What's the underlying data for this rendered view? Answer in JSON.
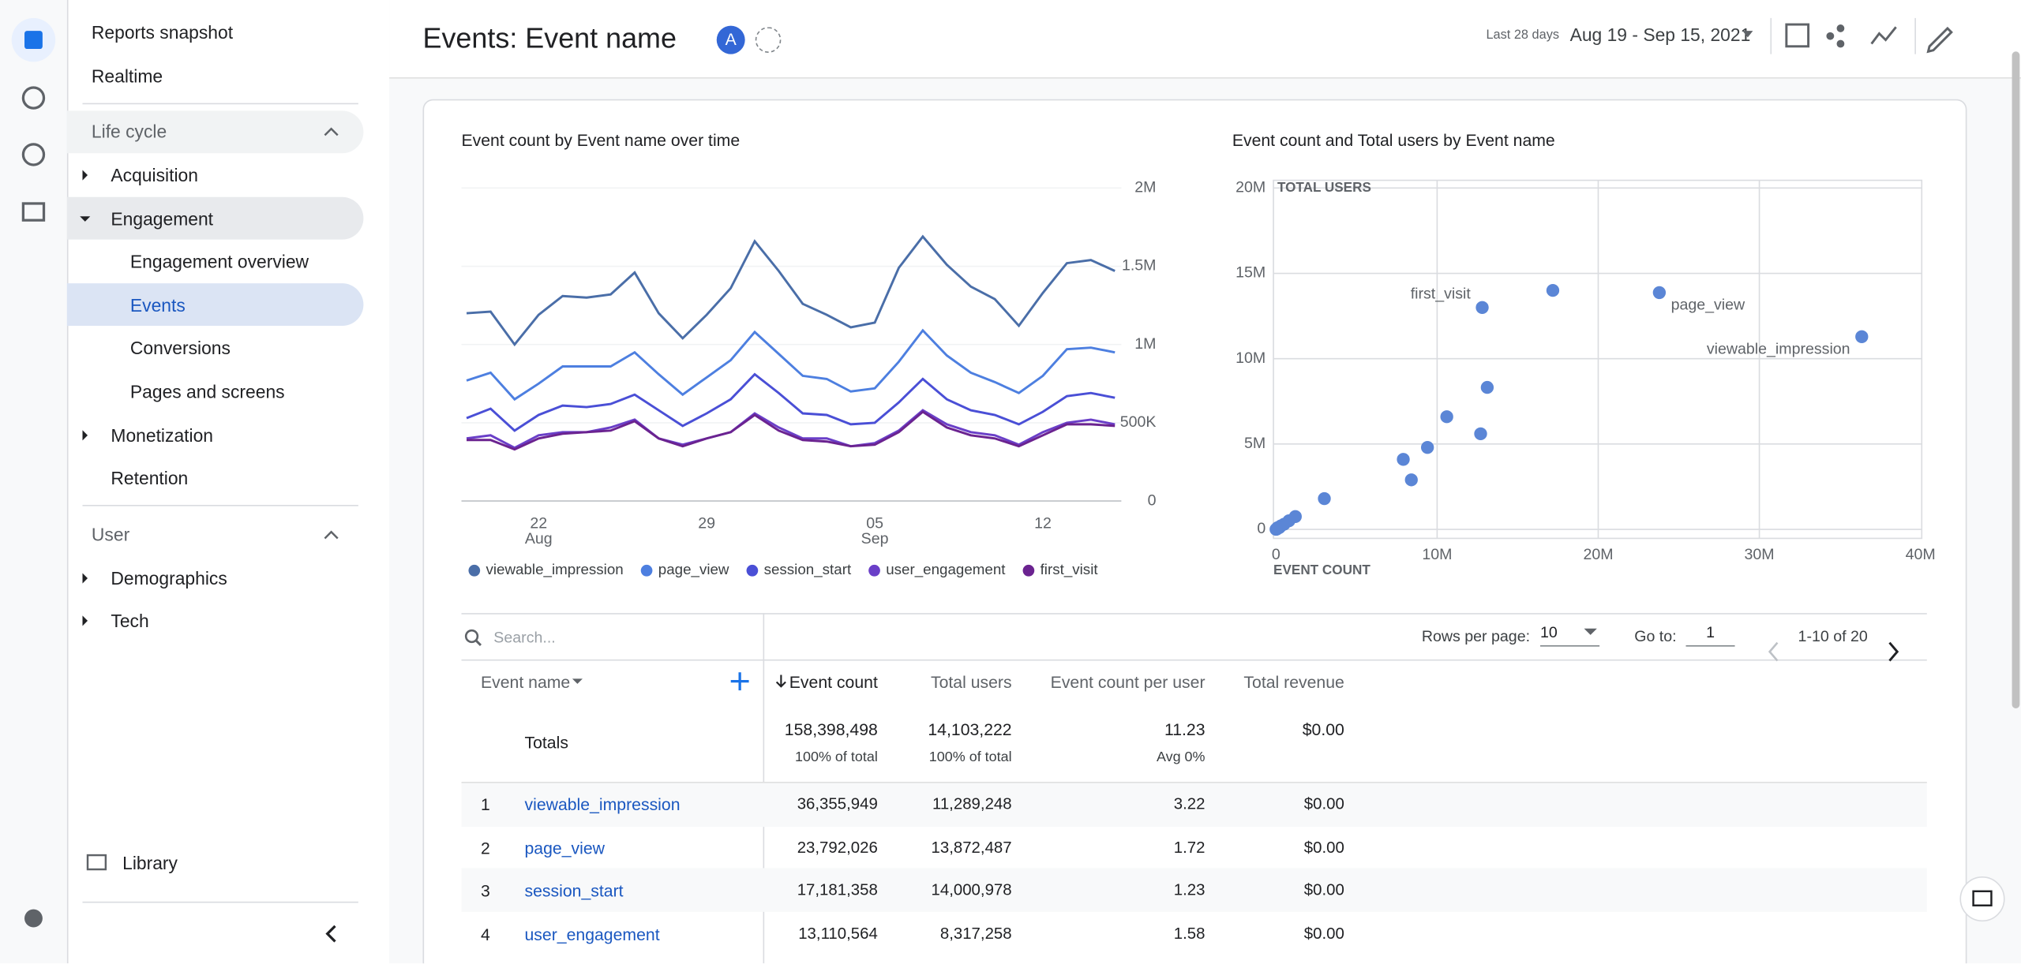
{
  "nav": {
    "top": [
      "Reports snapshot",
      "Realtime"
    ],
    "sections": [
      {
        "title": "Life cycle",
        "items": [
          "Acquisition",
          "Engagement",
          "Engagement overview",
          "Events",
          "Conversions",
          "Pages and screens",
          "Monetization",
          "Retention"
        ]
      },
      {
        "title": "User",
        "items": [
          "Demographics",
          "Tech"
        ]
      }
    ],
    "library": "Library"
  },
  "header": {
    "title": "Events: Event name",
    "avatar": "A",
    "date_range_label": "Last 28 days",
    "date_range": "Aug 19 - Sep 15, 2021"
  },
  "chart_data": [
    {
      "type": "line",
      "title": "Event count by Event name over time",
      "categories": [
        null,
        null,
        null,
        "22 Aug",
        null,
        null,
        null,
        null,
        null,
        null,
        "29",
        null,
        null,
        null,
        null,
        null,
        null,
        "05 Sep",
        null,
        null,
        null,
        null,
        null,
        null,
        "12",
        null,
        null,
        null
      ],
      "series": [
        {
          "name": "viewable_impression",
          "color": "#4a6ea8",
          "values": [
            1200000,
            1210000,
            1000000,
            1190000,
            1310000,
            1300000,
            1320000,
            1460000,
            1200000,
            1040000,
            1190000,
            1360000,
            1660000,
            1470000,
            1260000,
            1190000,
            1110000,
            1140000,
            1490000,
            1690000,
            1510000,
            1370000,
            1290000,
            1120000,
            1330000,
            1520000,
            1540000,
            1470000
          ]
        },
        {
          "name": "page_view",
          "color": "#4d7fe0",
          "values": [
            770000,
            820000,
            650000,
            750000,
            860000,
            860000,
            860000,
            950000,
            810000,
            680000,
            790000,
            900000,
            1080000,
            940000,
            800000,
            780000,
            700000,
            720000,
            890000,
            1090000,
            930000,
            820000,
            760000,
            690000,
            800000,
            970000,
            980000,
            950000
          ]
        },
        {
          "name": "session_start",
          "color": "#4a4fd6",
          "values": [
            530000,
            590000,
            450000,
            550000,
            610000,
            600000,
            620000,
            680000,
            580000,
            480000,
            560000,
            650000,
            810000,
            690000,
            560000,
            550000,
            490000,
            500000,
            630000,
            780000,
            650000,
            580000,
            550000,
            490000,
            570000,
            670000,
            690000,
            660000
          ]
        },
        {
          "name": "user_engagement",
          "color": "#6a3fc8",
          "values": [
            400000,
            420000,
            340000,
            420000,
            440000,
            440000,
            470000,
            520000,
            400000,
            360000,
            400000,
            440000,
            560000,
            470000,
            400000,
            400000,
            350000,
            370000,
            450000,
            580000,
            490000,
            440000,
            420000,
            360000,
            440000,
            500000,
            520000,
            490000
          ]
        },
        {
          "name": "first_visit",
          "color": "#6b2390",
          "values": [
            390000,
            390000,
            330000,
            400000,
            430000,
            440000,
            450000,
            510000,
            400000,
            350000,
            400000,
            440000,
            550000,
            450000,
            390000,
            380000,
            350000,
            360000,
            440000,
            570000,
            470000,
            420000,
            400000,
            350000,
            420000,
            490000,
            490000,
            480000
          ]
        }
      ],
      "ylim": [
        0,
        2000000
      ],
      "yticks": [
        0,
        {
          "value": 500000,
          "label": "500K"
        },
        {
          "value": 1000000,
          "label": "1M"
        },
        {
          "value": 1500000,
          "label": "1.5M"
        },
        {
          "value": 2000000,
          "label": "2M"
        }
      ],
      "grid": true,
      "legend": "bottom"
    },
    {
      "type": "scatter",
      "title": "Event count and Total users by Event name",
      "xlabel": "EVENT COUNT",
      "ylabel": "TOTAL USERS",
      "color": "#5b86d6",
      "x": [
        36355949,
        23792026,
        17181358,
        13110564,
        12800000,
        12700000,
        10600000,
        9400000,
        8400000,
        7900000,
        3000000,
        1200000,
        800000,
        500000,
        300000,
        200000,
        100000,
        50000,
        20000,
        0
      ],
      "values": [
        11289248,
        13872487,
        14000978,
        8317258,
        13000000,
        5600000,
        6600000,
        4800000,
        2900000,
        4100000,
        1800000,
        750000,
        500000,
        300000,
        200000,
        100000,
        100000,
        20000,
        10000,
        0
      ],
      "point_labels": [
        "viewable_impression",
        "page_view",
        null,
        null,
        "first_visit",
        null,
        null,
        null,
        null,
        null,
        null,
        null,
        null,
        null,
        null,
        null,
        null,
        null,
        null,
        null
      ],
      "xlim": [
        0,
        40000000
      ],
      "xticks": [
        0,
        {
          "value": 10000000,
          "label": "10M"
        },
        {
          "value": 20000000,
          "label": "20M"
        },
        {
          "value": 30000000,
          "label": "30M"
        },
        {
          "value": 40000000,
          "label": "40M"
        }
      ],
      "ylim": [
        0,
        20000000
      ],
      "yticks": [
        0,
        {
          "value": 5000000,
          "label": "5M"
        },
        {
          "value": 10000000,
          "label": "10M"
        },
        {
          "value": 15000000,
          "label": "15M"
        },
        {
          "value": 20000000,
          "label": "20M"
        }
      ],
      "grid": true
    }
  ],
  "table": {
    "search_placeholder": "Search...",
    "rows_per_page_label": "Rows per page:",
    "rows_per_page": "10",
    "goto_label": "Go to:",
    "goto": "1",
    "pagination": "1-10 of 20",
    "columns": [
      "Event name",
      "Event count",
      "Total users",
      "Event count per user",
      "Total revenue"
    ],
    "totals": {
      "label": "Totals",
      "cells": [
        [
          "158,398,498",
          "100% of total"
        ],
        [
          "14,103,222",
          "100% of total"
        ],
        [
          "11.23",
          "Avg 0%"
        ],
        [
          "$0.00"
        ]
      ]
    },
    "rows": [
      [
        "1",
        "viewable_impression",
        "36,355,949",
        "11,289,248",
        "3.22",
        "$0.00"
      ],
      [
        "2",
        "page_view",
        "23,792,026",
        "13,872,487",
        "1.72",
        "$0.00"
      ],
      [
        "3",
        "session_start",
        "17,181,358",
        "14,000,978",
        "1.23",
        "$0.00"
      ],
      [
        "4",
        "user_engagement",
        "13,110,564",
        "8,317,258",
        "1.58",
        "$0.00"
      ]
    ]
  }
}
